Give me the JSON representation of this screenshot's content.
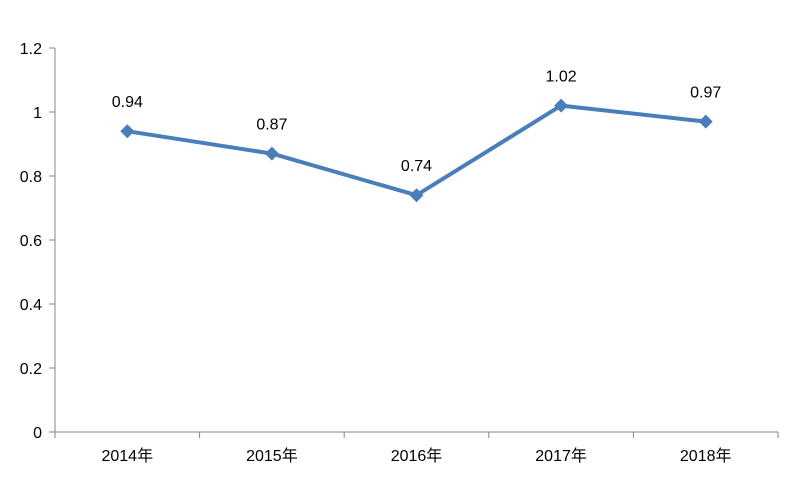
{
  "chart_data": {
    "type": "line",
    "categories": [
      "2014年",
      "2015年",
      "2016年",
      "2017年",
      "2018年"
    ],
    "series": [
      {
        "values": [
          0.94,
          0.87,
          0.74,
          1.02,
          0.97
        ],
        "data_labels": [
          "0.94",
          "0.87",
          "0.74",
          "1.02",
          "0.97"
        ],
        "color": "#4a7ebb",
        "marker": "diamond"
      }
    ],
    "title": "",
    "xlabel": "",
    "ylabel": "",
    "ylim": [
      0,
      1.2
    ],
    "yticks": [
      0,
      0.2,
      0.4,
      0.6,
      0.8,
      1,
      1.2
    ],
    "ytick_labels": [
      "0",
      "0.2",
      "0.4",
      "0.6",
      "0.8",
      "1",
      "1.2"
    ],
    "grid": false,
    "legend": "none",
    "axis_color": "#868686"
  }
}
